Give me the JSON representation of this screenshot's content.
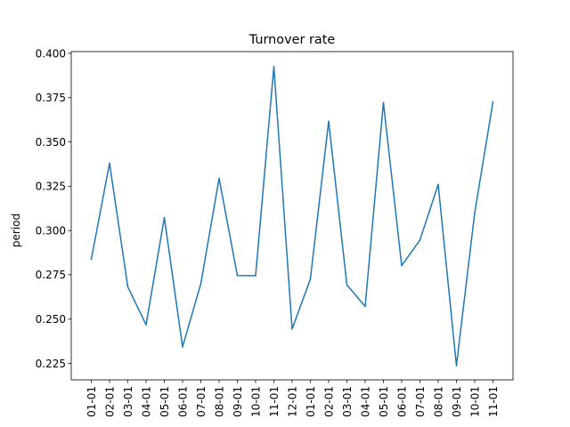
{
  "chart_data": {
    "type": "line",
    "title": "Turnover rate",
    "xlabel": "",
    "ylabel": "period",
    "ylim": [
      0.2157,
      0.401
    ],
    "yticks": [
      "0.225",
      "0.250",
      "0.275",
      "0.300",
      "0.325",
      "0.350",
      "0.375",
      "0.400"
    ],
    "ytick_values": [
      0.225,
      0.25,
      0.275,
      0.3,
      0.325,
      0.35,
      0.375,
      0.4
    ],
    "categories": [
      "01-01",
      "02-01",
      "03-01",
      "04-01",
      "05-01",
      "06-01",
      "07-01",
      "08-01",
      "09-01",
      "10-01",
      "11-01",
      "12-01",
      "01-01",
      "02-01",
      "03-01",
      "04-01",
      "05-01",
      "06-01",
      "07-01",
      "08-01",
      "09-01",
      "10-01",
      "11-01"
    ],
    "series": [
      {
        "color": "#1f77b4",
        "values": [
          0.2838,
          0.338,
          0.2682,
          0.2468,
          0.3073,
          0.2343,
          0.27,
          0.3295,
          0.2746,
          0.2745,
          0.3925,
          0.2444,
          0.2726,
          0.3617,
          0.2693,
          0.2572,
          0.3722,
          0.2802,
          0.2946,
          0.326,
          0.2237,
          0.31,
          0.3726
        ]
      }
    ],
    "grid": false,
    "legend": "none"
  }
}
